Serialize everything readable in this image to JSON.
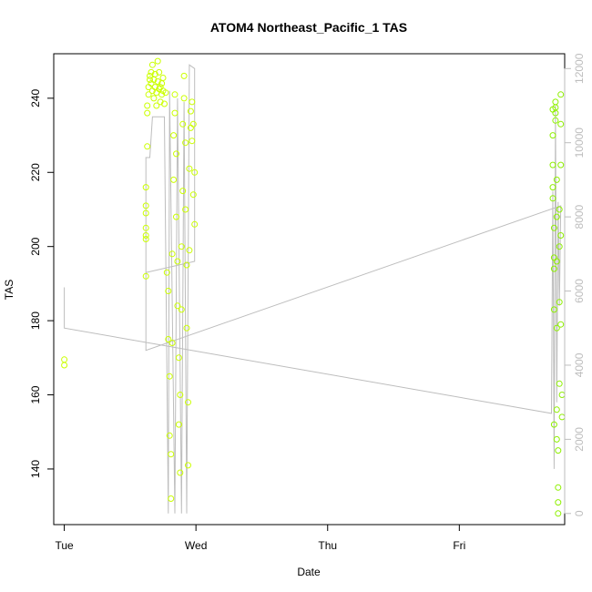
{
  "chart_data": {
    "type": "scatter",
    "title": "ATOM4 Northeast_Pacific_1 TAS",
    "xlabel": "Date",
    "ylabel": "TAS",
    "x_ticks": [
      "Tue",
      "Wed",
      "Thu",
      "Fri"
    ],
    "ylim": [
      125,
      252
    ],
    "y_ticks": [
      140,
      160,
      180,
      200,
      220,
      240
    ],
    "y2_ticks": [
      0,
      2000,
      4000,
      6000,
      8000,
      10000,
      12000
    ],
    "y2lim": [
      -300,
      12400
    ],
    "xlim_days": [
      -0.08,
      3.8
    ],
    "grid": false,
    "legend": "none",
    "colors": {
      "points_early": "#cbff00",
      "points_late": "#8ef000",
      "altitude_line": "#bdbdbd"
    },
    "series": [
      {
        "kind": "points",
        "values": [
          {
            "day": 0.0,
            "tas": 169.5
          },
          {
            "day": 0.0,
            "tas": 168.0
          },
          {
            "day": 0.62,
            "tas": 216.0
          },
          {
            "day": 0.62,
            "tas": 211.0
          },
          {
            "day": 0.62,
            "tas": 209.0
          },
          {
            "day": 0.62,
            "tas": 205.0
          },
          {
            "day": 0.62,
            "tas": 203.0
          },
          {
            "day": 0.62,
            "tas": 202.0
          },
          {
            "day": 0.62,
            "tas": 192.0
          },
          {
            "day": 0.63,
            "tas": 227.0
          },
          {
            "day": 0.63,
            "tas": 236.0
          },
          {
            "day": 0.63,
            "tas": 238.0
          },
          {
            "day": 0.64,
            "tas": 241.0
          },
          {
            "day": 0.64,
            "tas": 243.0
          },
          {
            "day": 0.65,
            "tas": 245.0
          },
          {
            "day": 0.65,
            "tas": 246.0
          },
          {
            "day": 0.66,
            "tas": 244.0
          },
          {
            "day": 0.66,
            "tas": 247.0
          },
          {
            "day": 0.67,
            "tas": 249.0
          },
          {
            "day": 0.67,
            "tas": 242.0
          },
          {
            "day": 0.68,
            "tas": 245.0
          },
          {
            "day": 0.68,
            "tas": 240.0
          },
          {
            "day": 0.69,
            "tas": 243.0
          },
          {
            "day": 0.69,
            "tas": 246.5
          },
          {
            "day": 0.7,
            "tas": 241.5
          },
          {
            "day": 0.7,
            "tas": 238.0
          },
          {
            "day": 0.71,
            "tas": 244.5
          },
          {
            "day": 0.71,
            "tas": 250.0
          },
          {
            "day": 0.72,
            "tas": 242.5
          },
          {
            "day": 0.72,
            "tas": 247.0
          },
          {
            "day": 0.73,
            "tas": 243.0
          },
          {
            "day": 0.73,
            "tas": 239.0
          },
          {
            "day": 0.74,
            "tas": 241.0
          },
          {
            "day": 0.74,
            "tas": 244.0
          },
          {
            "day": 0.75,
            "tas": 242.0
          },
          {
            "day": 0.75,
            "tas": 245.5
          },
          {
            "day": 0.76,
            "tas": 238.5
          },
          {
            "day": 0.77,
            "tas": 241.5
          },
          {
            "day": 0.78,
            "tas": 193.0
          },
          {
            "day": 0.79,
            "tas": 188.0
          },
          {
            "day": 0.79,
            "tas": 175.0
          },
          {
            "day": 0.8,
            "tas": 165.0
          },
          {
            "day": 0.8,
            "tas": 149.0
          },
          {
            "day": 0.81,
            "tas": 144.0
          },
          {
            "day": 0.81,
            "tas": 132.0
          },
          {
            "day": 0.82,
            "tas": 174.0
          },
          {
            "day": 0.82,
            "tas": 198.0
          },
          {
            "day": 0.83,
            "tas": 218.0
          },
          {
            "day": 0.83,
            "tas": 230.0
          },
          {
            "day": 0.84,
            "tas": 236.0
          },
          {
            "day": 0.84,
            "tas": 241.0
          },
          {
            "day": 0.85,
            "tas": 225.0
          },
          {
            "day": 0.85,
            "tas": 208.0
          },
          {
            "day": 0.86,
            "tas": 196.0
          },
          {
            "day": 0.86,
            "tas": 184.0
          },
          {
            "day": 0.87,
            "tas": 170.0
          },
          {
            "day": 0.87,
            "tas": 152.0
          },
          {
            "day": 0.88,
            "tas": 139.0
          },
          {
            "day": 0.88,
            "tas": 160.0
          },
          {
            "day": 0.89,
            "tas": 183.0
          },
          {
            "day": 0.89,
            "tas": 200.0
          },
          {
            "day": 0.9,
            "tas": 215.0
          },
          {
            "day": 0.9,
            "tas": 233.0
          },
          {
            "day": 0.91,
            "tas": 240.0
          },
          {
            "day": 0.91,
            "tas": 246.0
          },
          {
            "day": 0.92,
            "tas": 228.0
          },
          {
            "day": 0.92,
            "tas": 210.0
          },
          {
            "day": 0.93,
            "tas": 195.0
          },
          {
            "day": 0.93,
            "tas": 178.0
          },
          {
            "day": 0.94,
            "tas": 158.0
          },
          {
            "day": 0.94,
            "tas": 141.0
          },
          {
            "day": 0.95,
            "tas": 199.0
          },
          {
            "day": 0.95,
            "tas": 221.0
          },
          {
            "day": 0.96,
            "tas": 232.0
          },
          {
            "day": 0.96,
            "tas": 236.5
          },
          {
            "day": 0.97,
            "tas": 228.5
          },
          {
            "day": 0.97,
            "tas": 239.0
          },
          {
            "day": 0.98,
            "tas": 233.0
          },
          {
            "day": 0.98,
            "tas": 214.0
          },
          {
            "day": 0.99,
            "tas": 206.0
          },
          {
            "day": 0.99,
            "tas": 220.0
          },
          {
            "day": 3.71,
            "tas": 237.0
          },
          {
            "day": 3.71,
            "tas": 230.0
          },
          {
            "day": 3.71,
            "tas": 222.0
          },
          {
            "day": 3.71,
            "tas": 216.0
          },
          {
            "day": 3.71,
            "tas": 213.0
          },
          {
            "day": 3.72,
            "tas": 205.0
          },
          {
            "day": 3.72,
            "tas": 197.0
          },
          {
            "day": 3.72,
            "tas": 194.0
          },
          {
            "day": 3.72,
            "tas": 183.0
          },
          {
            "day": 3.72,
            "tas": 152.0
          },
          {
            "day": 3.73,
            "tas": 234.0
          },
          {
            "day": 3.73,
            "tas": 237.5
          },
          {
            "day": 3.73,
            "tas": 236.0
          },
          {
            "day": 3.73,
            "tas": 239.0
          },
          {
            "day": 3.74,
            "tas": 218.0
          },
          {
            "day": 3.74,
            "tas": 208.0
          },
          {
            "day": 3.74,
            "tas": 196.0
          },
          {
            "day": 3.74,
            "tas": 178.0
          },
          {
            "day": 3.74,
            "tas": 156.0
          },
          {
            "day": 3.74,
            "tas": 148.0
          },
          {
            "day": 3.75,
            "tas": 145.0
          },
          {
            "day": 3.75,
            "tas": 135.0
          },
          {
            "day": 3.75,
            "tas": 131.0
          },
          {
            "day": 3.75,
            "tas": 128.0
          },
          {
            "day": 3.76,
            "tas": 163.0
          },
          {
            "day": 3.76,
            "tas": 185.0
          },
          {
            "day": 3.76,
            "tas": 200.0
          },
          {
            "day": 3.76,
            "tas": 210.0
          },
          {
            "day": 3.77,
            "tas": 222.0
          },
          {
            "day": 3.77,
            "tas": 233.0
          },
          {
            "day": 3.77,
            "tas": 241.0
          },
          {
            "day": 3.77,
            "tas": 203.0
          },
          {
            "day": 3.77,
            "tas": 179.0
          },
          {
            "day": 3.78,
            "tas": 160.0
          },
          {
            "day": 3.78,
            "tas": 154.0
          }
        ]
      },
      {
        "kind": "altitude-line",
        "values": [
          {
            "day": 0.0,
            "alt": 6100
          },
          {
            "day": 0.0,
            "alt": 5000
          },
          {
            "day": 3.7,
            "alt": 2700
          },
          {
            "day": 3.71,
            "alt": 8700
          },
          {
            "day": 3.72,
            "alt": 1200
          },
          {
            "day": 3.73,
            "alt": 11000
          },
          {
            "day": 3.74,
            "alt": 3000
          },
          {
            "day": 3.75,
            "alt": 8400
          },
          {
            "day": 3.76,
            "alt": 5600
          },
          {
            "day": 3.77,
            "alt": 8300
          },
          {
            "day": 0.62,
            "alt": 4400
          },
          {
            "day": 0.62,
            "alt": 9600
          },
          {
            "day": 0.65,
            "alt": 9600
          },
          {
            "day": 0.67,
            "alt": 10700
          },
          {
            "day": 0.76,
            "alt": 10700
          },
          {
            "day": 0.79,
            "alt": 0
          },
          {
            "day": 0.8,
            "alt": 11400
          },
          {
            "day": 0.84,
            "alt": 0
          },
          {
            "day": 0.86,
            "alt": 11200
          },
          {
            "day": 0.89,
            "alt": 0
          },
          {
            "day": 0.91,
            "alt": 11100
          },
          {
            "day": 0.93,
            "alt": 0
          },
          {
            "day": 0.95,
            "alt": 12100
          },
          {
            "day": 0.99,
            "alt": 12000
          },
          {
            "day": 0.99,
            "alt": 6800
          },
          {
            "day": 0.62,
            "alt": 6500
          }
        ]
      }
    ]
  }
}
